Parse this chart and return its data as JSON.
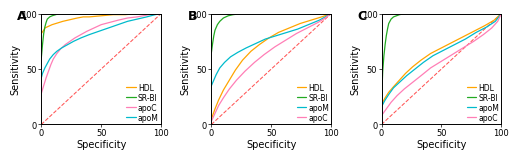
{
  "colors": {
    "HDL": "#FFA500",
    "SR-BI": "#22AA22",
    "apoC": "#FF7EB6",
    "apoM": "#00BBCC",
    "diagonal": "#FF5555"
  },
  "panel_A": {
    "legend_order": [
      "HDL",
      "SR-BI",
      "apoC",
      "apoM"
    ],
    "HDL": {
      "x": [
        0,
        2,
        3,
        5,
        7,
        9,
        12,
        15,
        18,
        22,
        26,
        30,
        35,
        40,
        50,
        60,
        70,
        80,
        90,
        100
      ],
      "y": [
        82,
        85,
        87,
        88,
        89,
        90,
        91,
        92,
        93,
        94,
        95,
        96,
        97,
        97,
        98,
        99,
        99,
        100,
        100,
        100
      ]
    },
    "SR-BI": {
      "x": [
        0,
        1,
        2,
        3,
        4,
        5,
        7,
        9,
        12,
        15,
        20,
        30,
        40,
        50,
        60,
        70,
        80,
        90,
        100
      ],
      "y": [
        60,
        72,
        82,
        88,
        92,
        95,
        97,
        98,
        99,
        100,
        100,
        100,
        100,
        100,
        100,
        100,
        100,
        100,
        100
      ]
    },
    "apoC": {
      "x": [
        0,
        2,
        4,
        6,
        8,
        10,
        13,
        16,
        20,
        24,
        28,
        33,
        38,
        44,
        50,
        57,
        64,
        72,
        80,
        90,
        100
      ],
      "y": [
        28,
        35,
        42,
        48,
        54,
        59,
        64,
        68,
        72,
        75,
        78,
        81,
        84,
        87,
        90,
        92,
        94,
        96,
        97,
        99,
        100
      ]
    },
    "apoM": {
      "x": [
        0,
        1,
        3,
        5,
        7,
        10,
        13,
        17,
        22,
        27,
        33,
        40,
        48,
        56,
        64,
        72,
        80,
        88,
        95,
        100
      ],
      "y": [
        42,
        46,
        51,
        55,
        59,
        63,
        66,
        69,
        72,
        75,
        78,
        81,
        84,
        87,
        90,
        93,
        95,
        97,
        99,
        100
      ]
    }
  },
  "panel_B": {
    "legend_order": [
      "HDL",
      "SR-BI",
      "apoM",
      "apoC"
    ],
    "SR-BI": {
      "x": [
        0,
        1,
        2,
        3,
        5,
        7,
        10,
        14,
        18,
        25,
        35,
        45,
        60,
        75,
        90,
        100
      ],
      "y": [
        65,
        73,
        80,
        85,
        90,
        93,
        96,
        98,
        99,
        100,
        100,
        100,
        100,
        100,
        100,
        100
      ]
    },
    "HDL": {
      "x": [
        0,
        3,
        6,
        10,
        15,
        20,
        26,
        33,
        40,
        48,
        56,
        65,
        74,
        83,
        92,
        100
      ],
      "y": [
        5,
        14,
        22,
        31,
        40,
        49,
        58,
        66,
        72,
        78,
        83,
        87,
        91,
        94,
        97,
        100
      ]
    },
    "apoM": {
      "x": [
        0,
        2,
        4,
        7,
        11,
        16,
        22,
        29,
        37,
        45,
        54,
        63,
        72,
        81,
        90,
        100
      ],
      "y": [
        35,
        40,
        45,
        51,
        56,
        61,
        65,
        69,
        73,
        77,
        80,
        83,
        86,
        90,
        94,
        100
      ]
    },
    "apoC": {
      "x": [
        0,
        3,
        6,
        10,
        15,
        21,
        28,
        36,
        44,
        53,
        62,
        71,
        80,
        89,
        95,
        100
      ],
      "y": [
        3,
        10,
        17,
        24,
        32,
        40,
        48,
        56,
        63,
        70,
        76,
        82,
        87,
        92,
        96,
        100
      ]
    }
  },
  "panel_C": {
    "legend_order": [
      "HDL",
      "SR-BI",
      "apoM",
      "apoC"
    ],
    "SR-BI": {
      "x": [
        0,
        1,
        2,
        3,
        4,
        5,
        6,
        8,
        10,
        15,
        20,
        30,
        40,
        60,
        80,
        100
      ],
      "y": [
        20,
        48,
        62,
        72,
        80,
        86,
        91,
        95,
        97,
        99,
        100,
        100,
        100,
        100,
        100,
        100
      ]
    },
    "HDL": {
      "x": [
        0,
        3,
        6,
        10,
        15,
        20,
        26,
        33,
        41,
        50,
        59,
        68,
        77,
        86,
        94,
        100
      ],
      "y": [
        18,
        24,
        29,
        34,
        40,
        46,
        52,
        58,
        64,
        69,
        74,
        79,
        84,
        89,
        94,
        100
      ]
    },
    "apoM": {
      "x": [
        0,
        3,
        6,
        10,
        15,
        21,
        28,
        35,
        43,
        52,
        61,
        70,
        79,
        88,
        95,
        100
      ],
      "y": [
        16,
        22,
        27,
        33,
        38,
        44,
        50,
        56,
        62,
        67,
        72,
        77,
        83,
        88,
        93,
        100
      ]
    },
    "apoC": {
      "x": [
        0,
        4,
        8,
        13,
        19,
        26,
        33,
        41,
        50,
        59,
        68,
        77,
        85,
        92,
        97,
        100
      ],
      "y": [
        8,
        14,
        20,
        26,
        32,
        38,
        44,
        51,
        57,
        63,
        69,
        75,
        81,
        87,
        93,
        100
      ]
    }
  },
  "xlabel": "Specificity",
  "ylabel": "Sensitivity",
  "tick_fontsize": 6,
  "label_fontsize": 7,
  "legend_fontsize": 5.5,
  "panel_label_fontsize": 9,
  "xlim": [
    0,
    100
  ],
  "ylim": [
    0,
    100
  ],
  "xticks": [
    0,
    50,
    100
  ],
  "yticks": [
    0,
    50,
    100
  ]
}
